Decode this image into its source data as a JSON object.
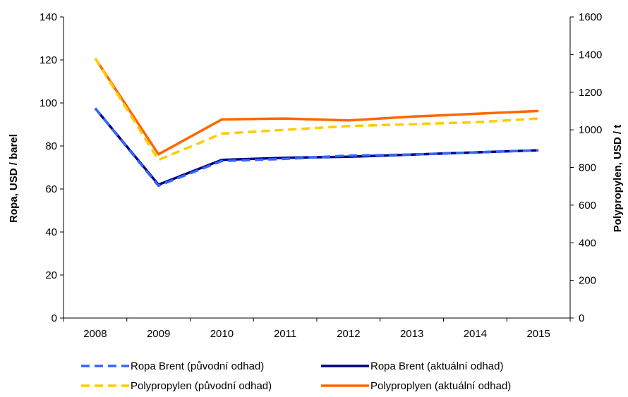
{
  "chart_data": {
    "type": "line",
    "categories": [
      "2008",
      "2009",
      "2010",
      "2011",
      "2012",
      "2013",
      "2014",
      "2015"
    ],
    "y_left": {
      "label": "Ropa, USD / barel",
      "ylim": [
        0,
        140
      ],
      "ticks": [
        "0",
        "20",
        "40",
        "60",
        "80",
        "100",
        "120",
        "140"
      ]
    },
    "y_right": {
      "label": "Polypropylen, USD / t",
      "ylim": [
        0,
        1600
      ],
      "ticks": [
        "0",
        "200",
        "400",
        "600",
        "800",
        "1000",
        "1200",
        "1400",
        "1600"
      ]
    },
    "grid": false,
    "legend_position": "bottom",
    "series": [
      {
        "name": "Ropa Brent (původní odhad)",
        "axis": "left",
        "style": "dashed",
        "color": "#3366FF",
        "values": [
          97.5,
          61.5,
          73,
          74,
          75.5,
          76,
          77,
          78
        ]
      },
      {
        "name": "Ropa Brent (aktuální odhad)",
        "axis": "left",
        "style": "solid",
        "color": "#000080",
        "values": [
          97.5,
          62,
          73.5,
          74.5,
          75,
          76,
          77,
          78
        ]
      },
      {
        "name": "Polypropylen (původní odhad)",
        "axis": "right",
        "style": "dashed",
        "color": "#FFCC00",
        "values": [
          1380,
          840,
          980,
          1000,
          1020,
          1030,
          1040,
          1060
        ]
      },
      {
        "name": "Polyproplyen (aktuální odhad)",
        "axis": "right",
        "style": "solid",
        "color": "#FF6600",
        "values": [
          1380,
          870,
          1055,
          1060,
          1050,
          1070,
          1085,
          1100
        ]
      }
    ]
  }
}
